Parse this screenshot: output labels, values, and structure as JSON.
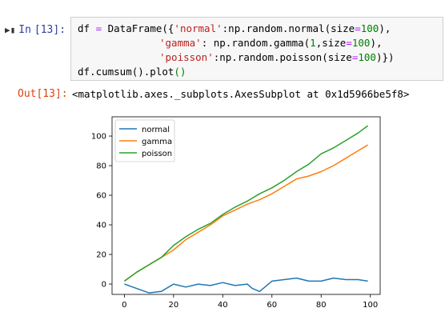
{
  "input_cell": {
    "prompt_label": "In",
    "prompt_number": "[13]:",
    "code": {
      "l1": {
        "a": "df ",
        "b": "=",
        "c": " DataFrame({",
        "d": "'normal'",
        "e": ":np.random.normal(size",
        "f": "=",
        "g": "100",
        "h": "),"
      },
      "l2": {
        "d": "'gamma'",
        "e": ": np.random.gamma(",
        "g1": "1",
        "e2": ",size",
        "f": "=",
        "g": "100",
        "h": "),"
      },
      "l3": {
        "d": "'poisson'",
        "e": ":np.random.poisson(size",
        "f": "=",
        "g": "100",
        "h": ")})"
      },
      "l4": {
        "a": "df.cumsum().plot",
        "p": "()"
      }
    }
  },
  "output_cell": {
    "prompt": "Out[13]:",
    "text": "<matplotlib.axes._subplots.AxesSubplot at 0x1d5966be5f8>"
  },
  "colors": {
    "normal": "#1f77b4",
    "gamma": "#ff7f0e",
    "poisson": "#2ca02c"
  },
  "chart_data": {
    "type": "line",
    "x_ticks": [
      0,
      20,
      40,
      60,
      80,
      100
    ],
    "y_ticks": [
      0,
      20,
      40,
      60,
      80,
      100
    ],
    "xlim": [
      -5,
      104
    ],
    "ylim": [
      -7,
      113
    ],
    "legend_position": "top-left",
    "series": [
      {
        "name": "normal",
        "x": [
          0,
          5,
          10,
          15,
          20,
          25,
          30,
          35,
          40,
          45,
          50,
          52,
          55,
          60,
          65,
          70,
          75,
          80,
          85,
          90,
          95,
          99
        ],
        "values": [
          0,
          -3,
          -6,
          -5,
          0,
          -2,
          0,
          -1,
          1,
          -1,
          0,
          -3,
          -5,
          2,
          3,
          4,
          2,
          2,
          4,
          3,
          3,
          2
        ]
      },
      {
        "name": "gamma",
        "x": [
          0,
          5,
          10,
          15,
          20,
          25,
          30,
          35,
          40,
          45,
          50,
          55,
          60,
          65,
          70,
          75,
          80,
          85,
          90,
          95,
          99
        ],
        "values": [
          2,
          8,
          13,
          18,
          23,
          30,
          35,
          40,
          46,
          50,
          54,
          57,
          61,
          66,
          71,
          73,
          76,
          80,
          85,
          90,
          94
        ]
      },
      {
        "name": "poisson",
        "x": [
          0,
          5,
          10,
          15,
          20,
          25,
          30,
          35,
          40,
          45,
          50,
          55,
          60,
          65,
          70,
          75,
          80,
          85,
          90,
          95,
          99
        ],
        "values": [
          2,
          8,
          13,
          18,
          26,
          32,
          37,
          41,
          47,
          52,
          56,
          61,
          65,
          70,
          76,
          81,
          88,
          92,
          97,
          102,
          107
        ]
      }
    ]
  }
}
